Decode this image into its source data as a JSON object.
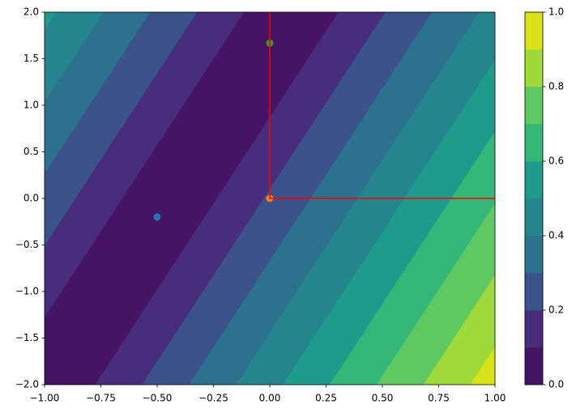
{
  "chart_data": {
    "type": "contour",
    "xlim": [
      -1,
      1
    ],
    "ylim": [
      -2,
      2
    ],
    "xticks": [
      {
        "value": -1,
        "label": "−1.00"
      },
      {
        "value": -0.75,
        "label": "−0.75"
      },
      {
        "value": -0.5,
        "label": "−0.50"
      },
      {
        "value": -0.25,
        "label": "−0.25"
      },
      {
        "value": 0,
        "label": "0.00"
      },
      {
        "value": 0.25,
        "label": "0.25"
      },
      {
        "value": 0.5,
        "label": "0.50"
      },
      {
        "value": 0.75,
        "label": "0.75"
      },
      {
        "value": 1,
        "label": "1.00"
      }
    ],
    "yticks": [
      {
        "value": -2,
        "label": "−2.0"
      },
      {
        "value": -1.5,
        "label": "−1.5"
      },
      {
        "value": -1,
        "label": "−1.0"
      },
      {
        "value": -0.5,
        "label": "−0.5"
      },
      {
        "value": 0,
        "label": "0.0"
      },
      {
        "value": 0.5,
        "label": "0.5"
      },
      {
        "value": 1,
        "label": "1.0"
      },
      {
        "value": 1.5,
        "label": "1.5"
      },
      {
        "value": 2,
        "label": "2.0"
      }
    ],
    "levels": [
      0,
      0.1,
      0.2,
      0.3,
      0.4,
      0.5,
      0.6,
      0.7,
      0.8,
      0.9,
      1
    ],
    "level_colors": [
      "#471365",
      "#472d7b",
      "#3b528b",
      "#2c728e",
      "#25858e",
      "#1e9b8a",
      "#35b779",
      "#5ec962",
      "#9fda3a",
      "#dae319"
    ],
    "contour_field": {
      "x_coef": 1,
      "y_coef": -0.27,
      "offset": 0.445,
      "scale": 0.48
    },
    "points": [
      {
        "x": -0.5,
        "y": -0.2,
        "color": "#1f77b4"
      },
      {
        "x": 0,
        "y": 0,
        "color": "#ff7f0e"
      },
      {
        "x": 0,
        "y": 1.667,
        "color": "#2ca02c"
      }
    ],
    "lines": [
      {
        "x": [
          0,
          0,
          1
        ],
        "y": [
          2,
          0,
          0
        ],
        "color": "#ff0000"
      }
    ],
    "colorbar": {
      "lim": [
        0,
        1
      ],
      "ticks": [
        {
          "value": 0,
          "label": "0.0"
        },
        {
          "value": 0.2,
          "label": "0.2"
        },
        {
          "value": 0.4,
          "label": "0.4"
        },
        {
          "value": 0.6,
          "label": "0.6"
        },
        {
          "value": 0.8,
          "label": "0.8"
        },
        {
          "value": 1,
          "label": "1.0"
        }
      ]
    }
  }
}
